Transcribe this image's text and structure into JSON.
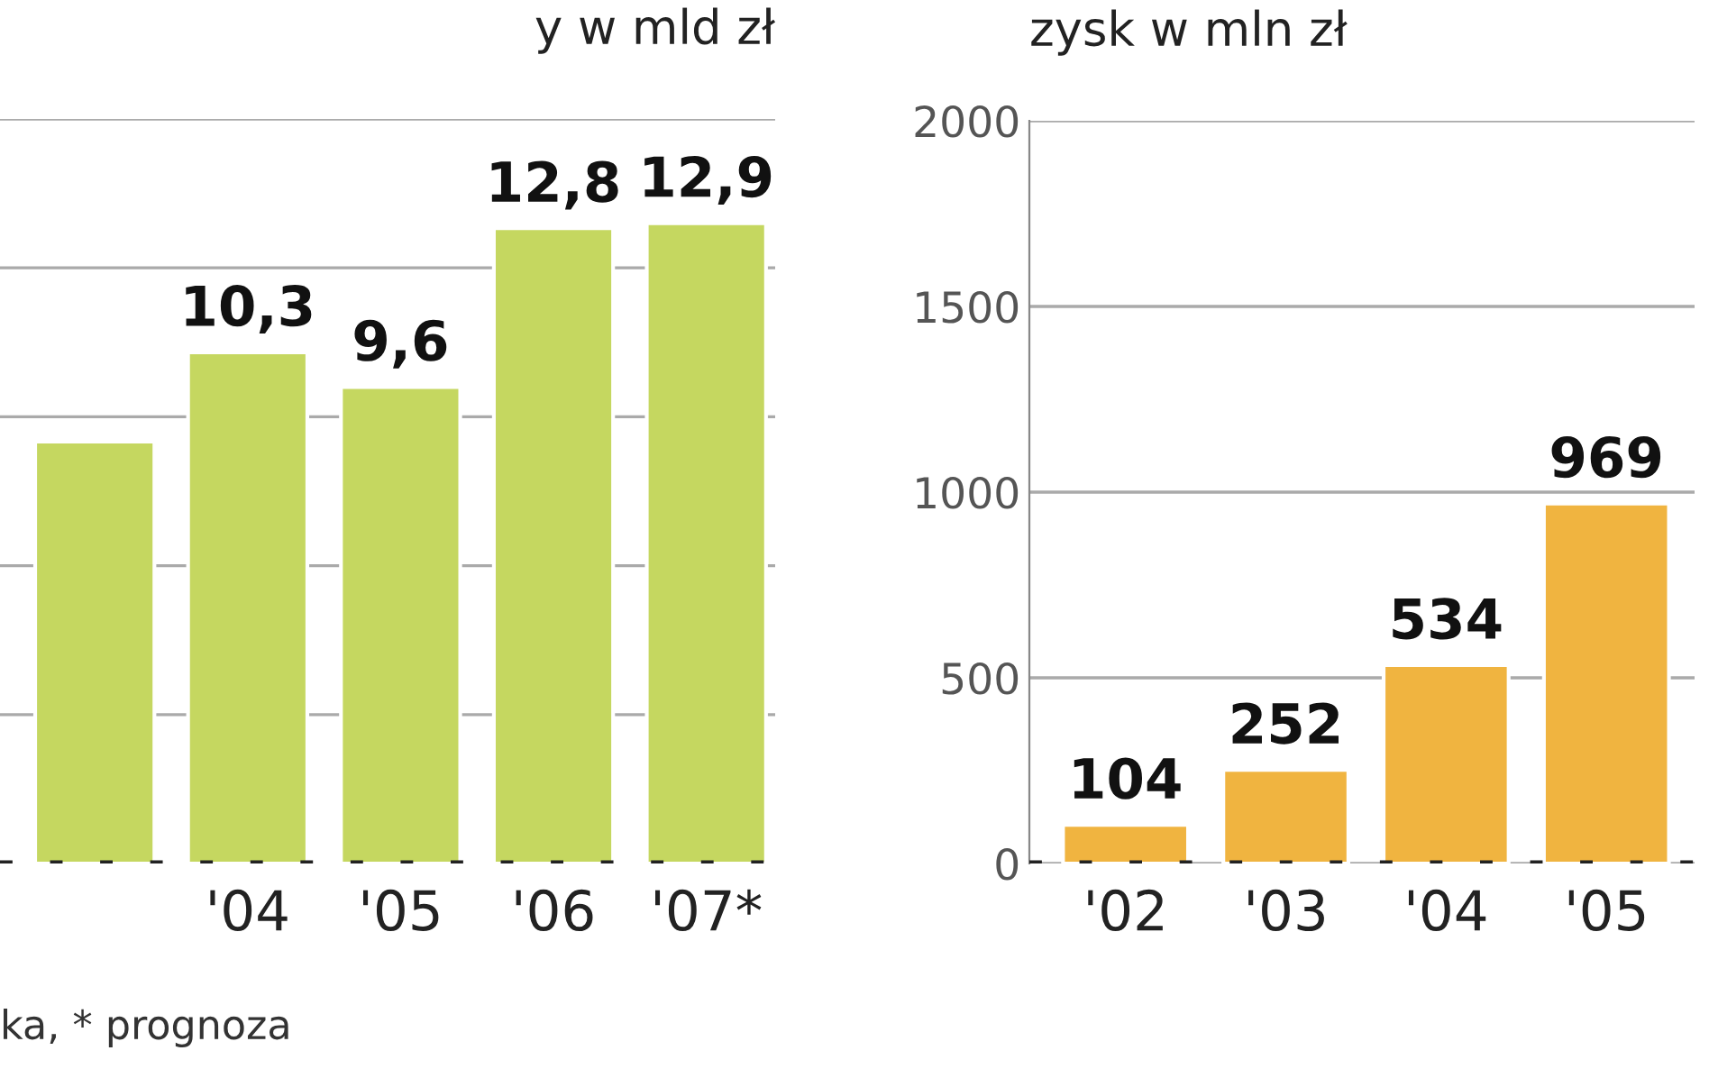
{
  "chart_data": [
    {
      "type": "bar",
      "title": "y w mld zł",
      "categories": [
        null,
        "'04",
        "'05",
        "'06",
        "'07*"
      ],
      "values": [
        8.5,
        10.3,
        9.6,
        12.8,
        12.9
      ],
      "value_labels": [
        null,
        "10,3",
        "9,6",
        "12,8",
        "12,9"
      ],
      "color": "#c5d760",
      "ylim": [
        0,
        15
      ],
      "yticks": [
        {
          "value": 3,
          "label": null
        },
        {
          "value": 6,
          "label": null
        },
        {
          "value": 9,
          "label": null
        },
        {
          "value": 12,
          "label": null
        },
        {
          "value": 15,
          "label": null
        }
      ],
      "grid": "y",
      "tick_labels": "x",
      "annotations": [
        "ka, * prognoza"
      ]
    },
    {
      "type": "bar",
      "title": "zysk w mln zł",
      "categories": [
        "'02",
        "'03",
        "'04",
        "'05"
      ],
      "values": [
        104,
        252,
        534,
        969
      ],
      "data_labels": true,
      "color": "#f0b440",
      "ylim": [
        0,
        2000
      ],
      "yticks": [
        0,
        500,
        1000,
        1500,
        2000
      ],
      "grid": "y"
    }
  ]
}
